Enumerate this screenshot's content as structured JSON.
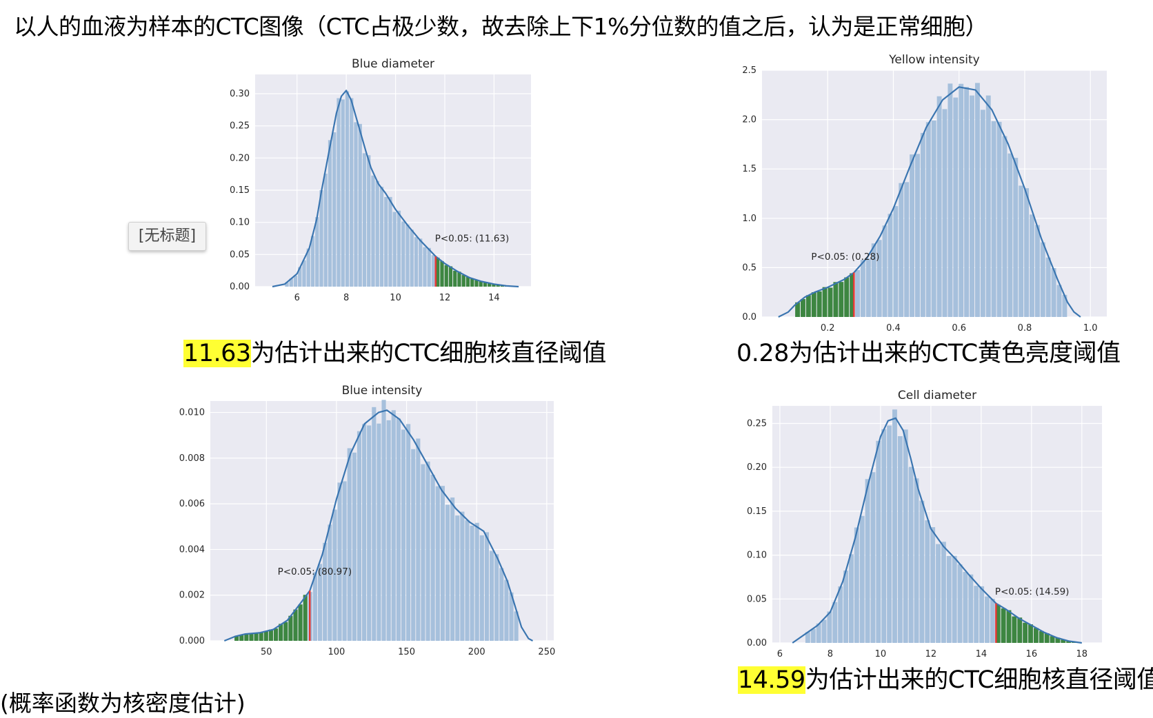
{
  "slide_title": "以人的血液为样本的CTC图像（CTC占极少数，故去除上下1%分位数的值之后，认为是正常细胞）",
  "tooltip": "[无标题]",
  "footnote": "(概率函数为核密度估计)",
  "captions": [
    {
      "highlight": "11.63",
      "text": "为估计出来的CTC细胞核直径阈值"
    },
    {
      "highlight": "",
      "text": "0.28为估计出来的CTC黄色亮度阈值"
    },
    {
      "highlight": "",
      "text": ""
    },
    {
      "highlight": "14.59",
      "text": "为估计出来的CTC细胞核直径阈值"
    }
  ],
  "colors": {
    "plot_bg": "#eaeaf2",
    "bar": "#a6c0dc",
    "bar_green": "#2e7d32",
    "kde_line": "#3a75b0",
    "threshold": "#e53935",
    "highlight": "#ffff33"
  },
  "chart_data": [
    {
      "type": "bar",
      "title": "Blue diameter",
      "xlim": [
        4.3,
        15.5
      ],
      "ylim": [
        0,
        0.33
      ],
      "xticks": [
        6,
        8,
        10,
        12,
        14
      ],
      "xtick_labels": [
        "6",
        "8",
        "10",
        "12",
        "14"
      ],
      "yticks": [
        0,
        0.05,
        0.1,
        0.15,
        0.2,
        0.25,
        0.3
      ],
      "ytick_labels": [
        "0.00",
        "0.05",
        "0.10",
        "0.15",
        "0.20",
        "0.25",
        "0.30"
      ],
      "bin_range": [
        5.5,
        14.6
      ],
      "kde": {
        "x": [
          5.0,
          5.5,
          6.0,
          6.5,
          6.8,
          7.0,
          7.3,
          7.6,
          7.8,
          8.0,
          8.2,
          8.5,
          8.8,
          9.0,
          9.3,
          9.6,
          10.0,
          10.5,
          11.0,
          11.63,
          12.0,
          12.5,
          13.0,
          13.5,
          14.0,
          14.5,
          15.0
        ],
        "y": [
          0.0,
          0.004,
          0.02,
          0.06,
          0.105,
          0.15,
          0.21,
          0.27,
          0.296,
          0.305,
          0.29,
          0.25,
          0.21,
          0.185,
          0.16,
          0.145,
          0.12,
          0.095,
          0.072,
          0.047,
          0.036,
          0.024,
          0.014,
          0.008,
          0.004,
          0.0012,
          0.0
        ]
      },
      "threshold": 11.63,
      "threshold_side": "upper",
      "annotation": "P<0.05: (11.63)",
      "annotation_at": [
        11.6,
        0.07
      ]
    },
    {
      "type": "bar",
      "title": "Yellow intensity",
      "xlim": [
        0.0,
        1.05
      ],
      "ylim": [
        0,
        2.5
      ],
      "xticks": [
        0.2,
        0.4,
        0.6,
        0.8,
        1.0
      ],
      "xtick_labels": [
        "0.2",
        "0.4",
        "0.6",
        "0.8",
        "1.0"
      ],
      "yticks": [
        0,
        0.5,
        1.0,
        1.5,
        2.0,
        2.5
      ],
      "ytick_labels": [
        "0.0",
        "0.5",
        "1.0",
        "1.5",
        "2.0",
        "2.5"
      ],
      "bin_range": [
        0.1,
        0.93
      ],
      "kde": {
        "x": [
          0.05,
          0.08,
          0.1,
          0.13,
          0.16,
          0.2,
          0.25,
          0.28,
          0.32,
          0.36,
          0.4,
          0.45,
          0.5,
          0.55,
          0.6,
          0.65,
          0.7,
          0.75,
          0.8,
          0.85,
          0.9,
          0.93,
          0.95,
          0.97
        ],
        "y": [
          0.0,
          0.05,
          0.12,
          0.2,
          0.25,
          0.3,
          0.38,
          0.45,
          0.6,
          0.82,
          1.1,
          1.52,
          1.92,
          2.2,
          2.33,
          2.3,
          2.1,
          1.75,
          1.3,
          0.8,
          0.38,
          0.15,
          0.05,
          0.0
        ]
      },
      "threshold": 0.28,
      "threshold_side": "lower",
      "annotation": "P<0.05: (0.28)",
      "annotation_at": [
        0.15,
        0.58
      ]
    },
    {
      "type": "bar",
      "title": "Blue intensity",
      "xlim": [
        10,
        255
      ],
      "ylim": [
        0,
        0.0105
      ],
      "xticks": [
        50,
        100,
        150,
        200,
        250
      ],
      "xtick_labels": [
        "50",
        "100",
        "150",
        "200",
        "250"
      ],
      "yticks": [
        0,
        0.002,
        0.004,
        0.006,
        0.008,
        0.01
      ],
      "ytick_labels": [
        "0.000",
        "0.002",
        "0.004",
        "0.006",
        "0.008",
        "0.010"
      ],
      "bin_range": [
        27,
        230
      ],
      "kde": {
        "x": [
          20,
          28,
          35,
          45,
          55,
          65,
          75,
          80.97,
          90,
          100,
          110,
          120,
          130,
          136,
          145,
          155,
          165,
          175,
          185,
          195,
          205,
          215,
          222,
          227,
          232,
          237,
          240
        ],
        "y": [
          0.0,
          0.0002,
          0.0003,
          0.00035,
          0.0005,
          0.0009,
          0.0017,
          0.0022,
          0.0038,
          0.0062,
          0.0082,
          0.0095,
          0.01,
          0.0101,
          0.0097,
          0.0088,
          0.0077,
          0.0066,
          0.0058,
          0.0052,
          0.0048,
          0.0036,
          0.0026,
          0.0016,
          0.0006,
          0.0001,
          0.0
        ]
      },
      "threshold": 80.97,
      "threshold_side": "lower",
      "annotation": "P<0.05: (80.97)",
      "annotation_at": [
        58,
        0.0029
      ]
    },
    {
      "type": "bar",
      "title": "Cell diameter",
      "xlim": [
        5.7,
        18.8
      ],
      "ylim": [
        0,
        0.27
      ],
      "xticks": [
        6,
        8,
        10,
        12,
        14,
        16,
        18
      ],
      "xtick_labels": [
        "6",
        "8",
        "10",
        "12",
        "14",
        "16",
        "18"
      ],
      "yticks": [
        0,
        0.05,
        0.1,
        0.15,
        0.2,
        0.25
      ],
      "ytick_labels": [
        "0.00",
        "0.05",
        "0.10",
        "0.15",
        "0.20",
        "0.25"
      ],
      "bin_range": [
        7.0,
        17.8
      ],
      "kde": {
        "x": [
          6.5,
          7.0,
          7.5,
          8.0,
          8.5,
          9.0,
          9.5,
          10.0,
          10.3,
          10.6,
          10.9,
          11.2,
          11.5,
          12.0,
          12.5,
          13.0,
          13.5,
          14.0,
          14.59,
          15.0,
          15.5,
          16.0,
          16.5,
          17.0,
          17.5,
          18.0
        ],
        "y": [
          0.0,
          0.01,
          0.02,
          0.035,
          0.07,
          0.12,
          0.18,
          0.235,
          0.253,
          0.256,
          0.242,
          0.21,
          0.175,
          0.13,
          0.11,
          0.095,
          0.078,
          0.062,
          0.045,
          0.038,
          0.028,
          0.02,
          0.012,
          0.006,
          0.002,
          0.0
        ]
      },
      "threshold": 14.59,
      "threshold_side": "upper",
      "annotation": "P<0.05: (14.59)",
      "annotation_at": [
        14.55,
        0.055
      ]
    }
  ]
}
